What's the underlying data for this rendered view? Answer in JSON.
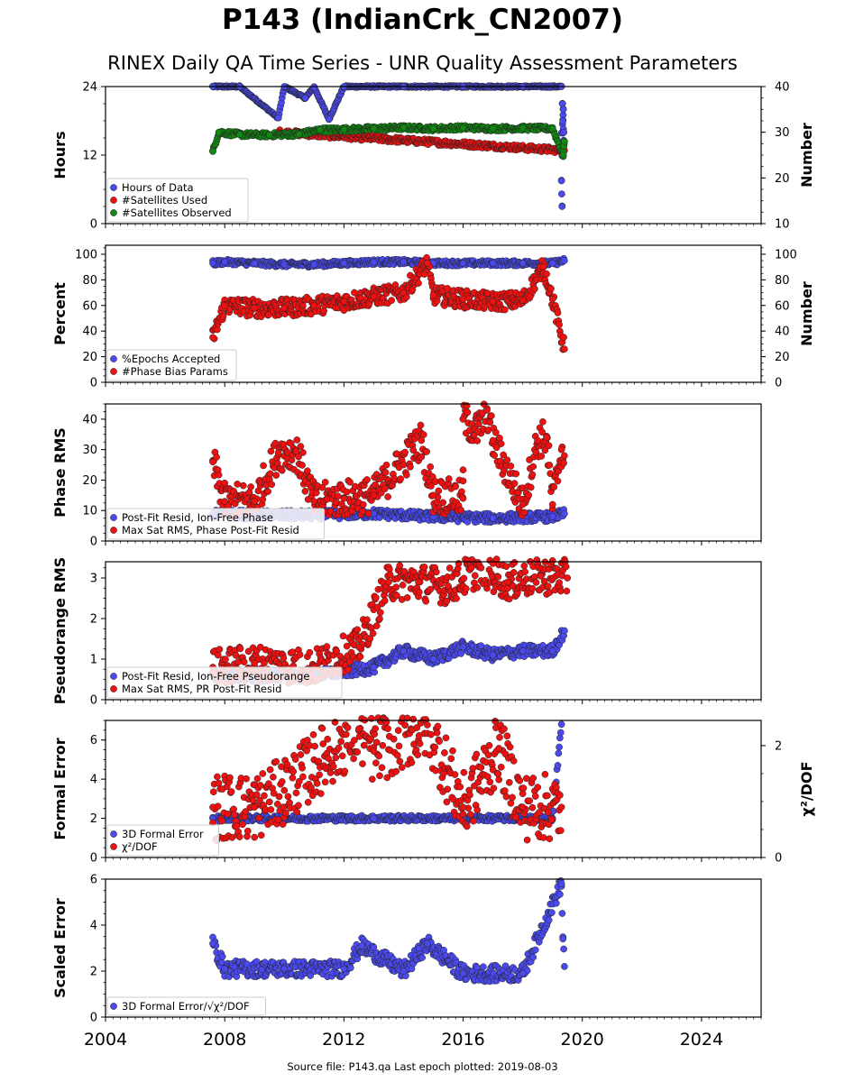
{
  "figure": {
    "title": "P143 (IndianCrk_CN2007)",
    "subtitle": "RINEX Daily QA Time Series - UNR Quality Assessment Parameters",
    "footer": "Source file: P143.qa Last epoch plotted: 2019-08-03"
  },
  "chart_data": [
    {
      "type": "scatter",
      "id": "hours",
      "ylabel": "Hours",
      "ylim": [
        0,
        24
      ],
      "yticks": [
        0,
        12,
        24
      ],
      "y2label": "Number",
      "y2lim": [
        10,
        40
      ],
      "y2ticks": [
        10,
        20,
        30,
        40
      ],
      "legend": [
        "Hours of Data",
        "#Satellites Used",
        "#Satellites Observed"
      ],
      "colors": [
        "#4a4aee",
        "#ee1111",
        "#118811"
      ],
      "series": [
        {
          "name": "Hours of Data",
          "axis": "left",
          "points": [
            [
              2007.6,
              24
            ],
            [
              2008.5,
              24
            ],
            [
              2010,
              24
            ],
            [
              2011,
              23.9
            ],
            [
              2012,
              24
            ],
            [
              2014,
              24
            ],
            [
              2016,
              24
            ],
            [
              2018,
              24
            ],
            [
              2019.3,
              24
            ],
            [
              2009.8,
              18.5
            ],
            [
              2010.7,
              22
            ],
            [
              2011.5,
              18.3
            ],
            [
              2019.33,
              21
            ],
            [
              2019.36,
              20
            ],
            [
              2019.35,
              18
            ],
            [
              2019.38,
              16
            ],
            [
              2019.34,
              14
            ],
            [
              2019.37,
              13
            ],
            [
              2019.3,
              7.5
            ],
            [
              2019.32,
              3
            ]
          ]
        },
        {
          "name": "#Satellites Used",
          "axis": "right",
          "points": [
            [
              2009.8,
              30
            ],
            [
              2019.4,
              26
            ]
          ]
        },
        {
          "name": "#Satellites Observed",
          "axis": "right",
          "points": [
            [
              2007.6,
              25.8
            ],
            [
              2007.8,
              30
            ],
            [
              2008.5,
              29.5
            ],
            [
              2009.5,
              29.4
            ],
            [
              2010.5,
              29.6
            ],
            [
              2011.2,
              30.5
            ],
            [
              2012,
              30.6
            ],
            [
              2013,
              30.8
            ],
            [
              2014,
              31
            ],
            [
              2015,
              30.8
            ],
            [
              2016,
              31
            ],
            [
              2017,
              30.8
            ],
            [
              2018,
              30.9
            ],
            [
              2019,
              30.8
            ],
            [
              2019.4,
              28
            ],
            [
              2019.38,
              27
            ],
            [
              2019.36,
              25
            ]
          ]
        }
      ]
    },
    {
      "type": "scatter",
      "id": "percent",
      "ylabel": "Percent",
      "ylim": [
        0,
        107
      ],
      "yticks": [
        0,
        20,
        40,
        60,
        80,
        100
      ],
      "y2label": "Number",
      "y2lim": [
        0,
        107
      ],
      "y2ticks": [
        0,
        20,
        40,
        60,
        80,
        100
      ],
      "legend": [
        "%Epochs Accepted",
        "#Phase Bias Params"
      ],
      "colors": [
        "#4a4aee",
        "#ee1111"
      ],
      "series": [
        {
          "name": "%Epochs Accepted",
          "axis": "left",
          "points": [
            [
              2007.6,
              93
            ],
            [
              2008,
              94
            ],
            [
              2009,
              93
            ],
            [
              2010,
              92
            ],
            [
              2011,
              92
            ],
            [
              2012,
              93
            ],
            [
              2013,
              94
            ],
            [
              2014,
              94
            ],
            [
              2015,
              93
            ],
            [
              2016,
              93
            ],
            [
              2017,
              93
            ],
            [
              2018,
              93
            ],
            [
              2019,
              93
            ],
            [
              2019.4,
              95
            ]
          ]
        },
        {
          "name": "#Phase Bias Params",
          "axis": "right",
          "points": [
            [
              2007.6,
              35
            ],
            [
              2008,
              60
            ],
            [
              2009,
              58
            ],
            [
              2010,
              58
            ],
            [
              2011,
              60
            ],
            [
              2012,
              63
            ],
            [
              2013,
              67
            ],
            [
              2014,
              70
            ],
            [
              2014.8,
              93
            ],
            [
              2015,
              68
            ],
            [
              2016,
              65
            ],
            [
              2017,
              63
            ],
            [
              2018,
              64
            ],
            [
              2019,
              65
            ],
            [
              2019.4,
              26
            ],
            [
              2018.7,
              90
            ]
          ]
        }
      ]
    },
    {
      "type": "scatter",
      "id": "phase-rms",
      "ylabel": "Phase RMS",
      "ylim": [
        0,
        45
      ],
      "yticks": [
        0,
        10,
        20,
        30,
        40
      ],
      "legend": [
        "Post-Fit Resid, Ion-Free Phase",
        "Max Sat RMS, Phase Post-Fit Resid"
      ],
      "colors": [
        "#4a4aee",
        "#ee1111"
      ],
      "series": [
        {
          "name": "Post-Fit Resid, Ion-Free Phase",
          "points": [
            [
              2007.6,
              9
            ],
            [
              2009,
              8.5
            ],
            [
              2011,
              8.5
            ],
            [
              2013,
              9
            ],
            [
              2015,
              8
            ],
            [
              2017,
              7.5
            ],
            [
              2019,
              8
            ],
            [
              2019.4,
              9
            ]
          ]
        },
        {
          "name": "Max Sat RMS, Phase Post-Fit Resid",
          "points": [
            [
              2007.6,
              26
            ],
            [
              2008,
              13
            ],
            [
              2009,
              13
            ],
            [
              2009.8,
              29
            ],
            [
              2010.4,
              29.5
            ],
            [
              2011,
              13
            ],
            [
              2012,
              14
            ],
            [
              2013,
              15
            ],
            [
              2014.6,
              33
            ],
            [
              2015,
              15
            ],
            [
              2016,
              14
            ],
            [
              2016,
              40
            ],
            [
              2016.5,
              36
            ],
            [
              2016.8,
              43
            ],
            [
              2017,
              33
            ],
            [
              2018,
              12
            ],
            [
              2018.5,
              33
            ],
            [
              2018.8,
              34
            ],
            [
              2019,
              12
            ],
            [
              2019.3,
              30
            ],
            [
              2019.4,
              28
            ]
          ]
        }
      ]
    },
    {
      "type": "scatter",
      "id": "pseudorange-rms",
      "ylabel": "Pseudorange RMS",
      "ylim": [
        0,
        3.4
      ],
      "yticks": [
        0,
        1,
        2,
        3
      ],
      "legend": [
        "Post-Fit Resid, Ion-Free Pseudorange",
        "Max Sat RMS, PR Post-Fit Resid"
      ],
      "colors": [
        "#4a4aee",
        "#ee1111"
      ],
      "series": [
        {
          "name": "Post-Fit Resid, Ion-Free Pseudorange",
          "points": [
            [
              2007.6,
              0.6
            ],
            [
              2009,
              0.6
            ],
            [
              2011,
              0.6
            ],
            [
              2013,
              0.8
            ],
            [
              2014,
              1.2
            ],
            [
              2015,
              1.0
            ],
            [
              2016,
              1.3
            ],
            [
              2017,
              1.1
            ],
            [
              2018,
              1.2
            ],
            [
              2019,
              1.2
            ],
            [
              2019.4,
              1.7
            ]
          ]
        },
        {
          "name": "Max Sat RMS, PR Post-Fit Resid",
          "points": [
            [
              2007.6,
              0.8
            ],
            [
              2009,
              0.9
            ],
            [
              2011,
              0.8
            ],
            [
              2012.5,
              1.3
            ],
            [
              2013.5,
              2.9
            ],
            [
              2014.5,
              2.9
            ],
            [
              2015.5,
              2.8
            ],
            [
              2016.6,
              3.25
            ],
            [
              2017.5,
              2.9
            ],
            [
              2018.6,
              3.05
            ],
            [
              2019.5,
              3.0
            ]
          ]
        }
      ]
    },
    {
      "type": "scatter",
      "id": "formal-error",
      "ylabel": "Formal Error",
      "ylim": [
        0,
        7
      ],
      "yticks": [
        0,
        2,
        4,
        6
      ],
      "y2label": "χ²/DOF",
      "y2lim": [
        0,
        2.45
      ],
      "y2ticks": [
        0,
        2
      ],
      "legend": [
        "3D Formal Error",
        "χ²/DOF"
      ],
      "colors": [
        "#4a4aee",
        "#ee1111"
      ],
      "series": [
        {
          "name": "3D Formal Error",
          "axis": "left",
          "points": [
            [
              2007.6,
              2.0
            ],
            [
              2010,
              2.0
            ],
            [
              2013,
              2.0
            ],
            [
              2016,
              2.0
            ],
            [
              2019,
              2.0
            ],
            [
              2019.3,
              6.8
            ]
          ]
        },
        {
          "name": "χ²/DOF",
          "axis": "right",
          "points": [
            [
              2007.6,
              0.9
            ],
            [
              2009,
              0.9
            ],
            [
              2010,
              1.2
            ],
            [
              2012.5,
              2.3
            ],
            [
              2013,
              1.9
            ],
            [
              2014.8,
              2.37
            ],
            [
              2016,
              0.9
            ],
            [
              2017.2,
              1.95
            ],
            [
              2018,
              0.9
            ],
            [
              2019.3,
              0.9
            ]
          ]
        }
      ]
    },
    {
      "type": "scatter",
      "id": "scaled-error",
      "ylabel": "Scaled Error",
      "ylim": [
        0,
        6
      ],
      "yticks": [
        0,
        2,
        4,
        6
      ],
      "xlim": [
        2004,
        2026
      ],
      "xticks": [
        2004,
        2008,
        2012,
        2016,
        2020,
        2024
      ],
      "legend": [
        "3D Formal Error/√χ²/DOF"
      ],
      "colors": [
        "#4a4aee"
      ],
      "series": [
        {
          "name": "3D Formal Error/√χ²/DOF",
          "points": [
            [
              2007.6,
              3.2
            ],
            [
              2008,
              2.1
            ],
            [
              2010,
              2.1
            ],
            [
              2012,
              2.1
            ],
            [
              2012.6,
              3.1
            ],
            [
              2014,
              2.0
            ],
            [
              2014.8,
              3.2
            ],
            [
              2016,
              1.9
            ],
            [
              2018,
              1.9
            ],
            [
              2019.3,
              5.8
            ],
            [
              2019.35,
              3.4
            ],
            [
              2019.4,
              2.2
            ]
          ]
        }
      ]
    }
  ]
}
